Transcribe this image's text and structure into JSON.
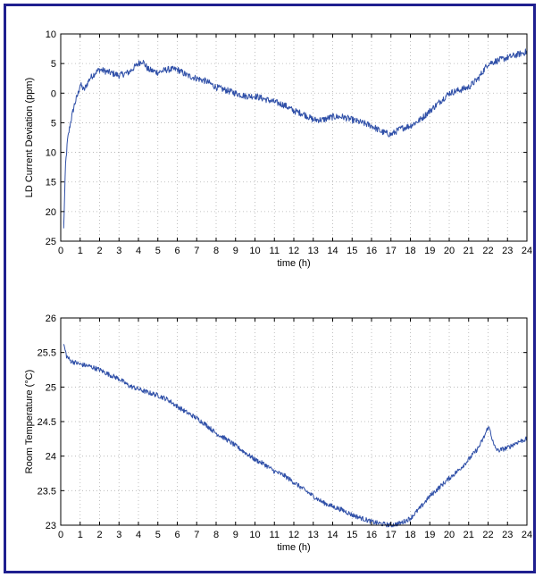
{
  "colors": {
    "frame": "#1f1f8f",
    "series": "#3050a8",
    "grid": "#b0b0b0"
  },
  "chart_data": [
    {
      "type": "line",
      "xlabel": "time (h)",
      "ylabel": "LD Current Deviation (ppm)",
      "xlim": [
        0,
        24
      ],
      "ylim": [
        -25,
        10
      ],
      "x_ticks": [
        0,
        1,
        2,
        3,
        4,
        5,
        6,
        7,
        8,
        9,
        10,
        11,
        12,
        13,
        14,
        15,
        16,
        17,
        18,
        19,
        20,
        21,
        22,
        23,
        24
      ],
      "y_ticks": [
        10,
        5,
        0,
        -5,
        -10,
        -15,
        -20,
        -25
      ],
      "y_tick_labels": [
        "10",
        "5",
        "0",
        "5",
        "10",
        "15",
        "20",
        "25"
      ],
      "grid": "dotted",
      "series": [
        {
          "x": [
            0.15,
            0.25,
            0.35,
            0.5,
            0.7,
            0.9,
            1.0,
            1.2,
            1.5,
            1.8,
            2.0,
            2.5,
            3.0,
            3.5,
            4.0,
            4.2,
            4.5,
            5.0,
            5.5,
            6.0,
            6.5,
            7.0,
            7.5,
            8.0,
            8.5,
            9.0,
            9.5,
            10.0,
            10.5,
            11.0,
            11.5,
            12.0,
            12.5,
            13.0,
            13.5,
            14.0,
            14.5,
            15.0,
            15.5,
            16.0,
            16.5,
            17.0,
            17.5,
            18.0,
            18.5,
            19.0,
            19.5,
            20.0,
            20.5,
            21.0,
            21.5,
            22.0,
            22.5,
            23.0,
            23.5,
            24.0
          ],
          "values": [
            -23,
            -12,
            -8,
            -5,
            -2,
            0,
            1.5,
            0.5,
            2.5,
            3.5,
            4,
            3.5,
            3,
            3.5,
            5,
            5.5,
            4,
            3.5,
            4,
            4,
            3,
            2.5,
            2,
            1,
            0.5,
            0,
            -0.5,
            -0.5,
            -1,
            -1.5,
            -2,
            -3,
            -3.5,
            -4.5,
            -4.5,
            -4,
            -4,
            -4.5,
            -5,
            -5.5,
            -6.5,
            -7,
            -6,
            -5.5,
            -4.5,
            -3,
            -1.5,
            0,
            0.5,
            1,
            2.5,
            5,
            5.5,
            6,
            6.5,
            7
          ]
        }
      ]
    },
    {
      "type": "line",
      "xlabel": "time (h)",
      "ylabel": "Room Temperature (°C)",
      "xlim": [
        0,
        24
      ],
      "ylim": [
        23,
        26
      ],
      "x_ticks": [
        0,
        1,
        2,
        3,
        4,
        5,
        6,
        7,
        8,
        9,
        10,
        11,
        12,
        13,
        14,
        15,
        16,
        17,
        18,
        19,
        20,
        21,
        22,
        23,
        24
      ],
      "y_ticks": [
        26,
        25.5,
        25,
        24.5,
        24,
        23.5,
        23
      ],
      "y_tick_labels": [
        "26",
        "25.5",
        "25",
        "24.5",
        "24",
        "23.5",
        "23"
      ],
      "grid": "dotted",
      "series": [
        {
          "x": [
            0.15,
            0.3,
            0.5,
            1.0,
            1.5,
            2.0,
            2.5,
            3.0,
            3.5,
            4.0,
            4.5,
            5.0,
            5.5,
            6.0,
            6.5,
            7.0,
            7.5,
            8.0,
            8.5,
            9.0,
            9.5,
            10.0,
            10.5,
            11.0,
            11.5,
            12.0,
            12.5,
            13.0,
            13.5,
            14.0,
            14.5,
            15.0,
            15.5,
            16.0,
            16.5,
            17.0,
            17.5,
            18.0,
            18.5,
            19.0,
            19.5,
            20.0,
            20.5,
            21.0,
            21.5,
            21.8,
            22.0,
            22.1,
            22.3,
            22.5,
            23.0,
            23.5,
            24.0
          ],
          "values": [
            25.62,
            25.45,
            25.38,
            25.33,
            25.3,
            25.25,
            25.18,
            25.12,
            25.02,
            24.97,
            24.92,
            24.88,
            24.82,
            24.72,
            24.63,
            24.55,
            24.45,
            24.33,
            24.25,
            24.15,
            24.05,
            23.95,
            23.88,
            23.78,
            23.72,
            23.62,
            23.52,
            23.42,
            23.33,
            23.27,
            23.22,
            23.15,
            23.1,
            23.05,
            23.02,
            23.0,
            23.03,
            23.1,
            23.25,
            23.42,
            23.55,
            23.68,
            23.8,
            23.95,
            24.12,
            24.28,
            24.42,
            24.38,
            24.15,
            24.08,
            24.12,
            24.2,
            24.25
          ]
        }
      ]
    }
  ]
}
